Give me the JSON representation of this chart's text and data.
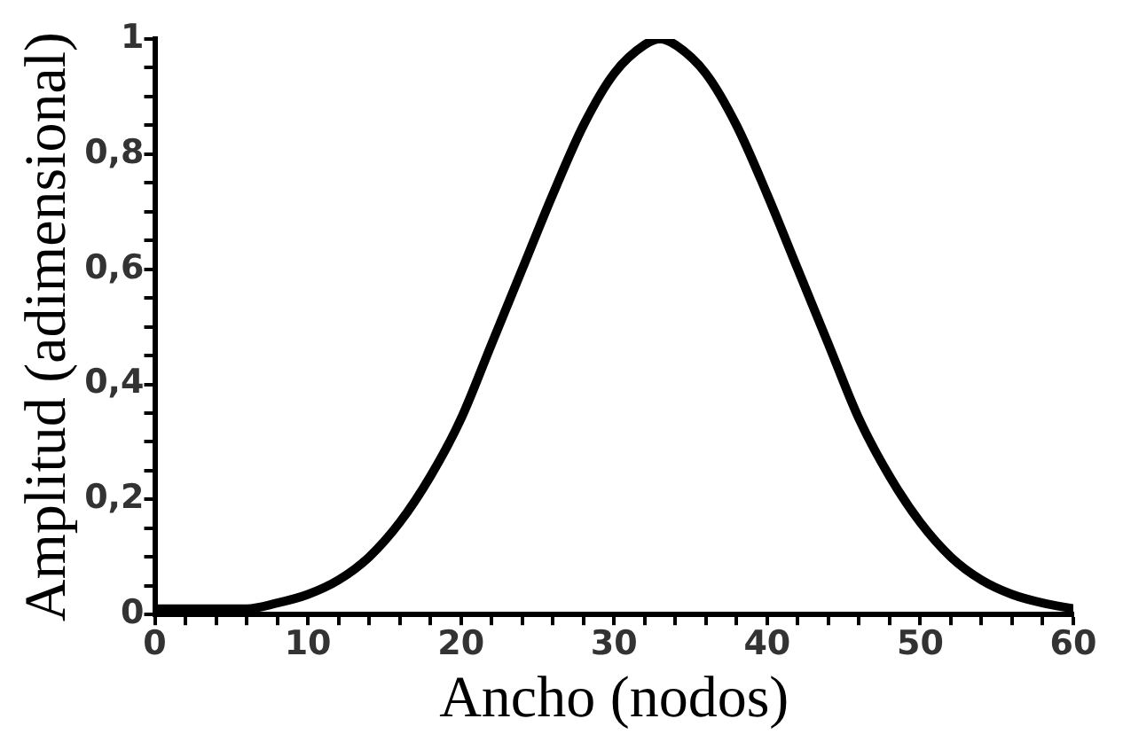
{
  "chart_data": {
    "type": "line",
    "xlabel": "Ancho (nodos)",
    "ylabel": "Amplitud (adimensional)",
    "x": [
      0,
      2,
      4,
      6,
      8,
      10,
      12,
      14,
      16,
      18,
      20,
      22,
      24,
      26,
      28,
      30,
      32,
      33,
      34,
      36,
      38,
      40,
      42,
      44,
      46,
      48,
      50,
      52,
      54,
      56,
      58,
      60
    ],
    "series": [
      {
        "color": "#000000",
        "values": [
          0.01,
          0.01,
          0.01,
          0.01,
          0.02,
          0.035,
          0.06,
          0.1,
          0.16,
          0.24,
          0.34,
          0.47,
          0.6,
          0.73,
          0.85,
          0.94,
          0.99,
          1,
          0.99,
          0.94,
          0.85,
          0.73,
          0.6,
          0.47,
          0.34,
          0.24,
          0.16,
          0.1,
          0.06,
          0.035,
          0.02,
          0.01
        ]
      }
    ],
    "xlim": [
      0,
      60
    ],
    "ylim": [
      0,
      1
    ],
    "xticks": [
      0,
      {
        "value": 2,
        "label": null
      },
      {
        "value": 4,
        "label": null
      },
      {
        "value": 6,
        "label": null
      },
      {
        "value": 8,
        "label": null
      },
      10,
      {
        "value": 12,
        "label": null
      },
      {
        "value": 14,
        "label": null
      },
      {
        "value": 16,
        "label": null
      },
      {
        "value": 18,
        "label": null
      },
      20,
      {
        "value": 22,
        "label": null
      },
      {
        "value": 24,
        "label": null
      },
      {
        "value": 26,
        "label": null
      },
      {
        "value": 28,
        "label": null
      },
      30,
      {
        "value": 32,
        "label": null
      },
      {
        "value": 34,
        "label": null
      },
      {
        "value": 36,
        "label": null
      },
      {
        "value": 38,
        "label": null
      },
      40,
      {
        "value": 42,
        "label": null
      },
      {
        "value": 44,
        "label": null
      },
      {
        "value": 46,
        "label": null
      },
      {
        "value": 48,
        "label": null
      },
      50,
      {
        "value": 52,
        "label": null
      },
      {
        "value": 54,
        "label": null
      },
      {
        "value": 56,
        "label": null
      },
      {
        "value": 58,
        "label": null
      },
      60
    ],
    "yticks": [
      0,
      {
        "value": 0.05,
        "label": null
      },
      {
        "value": 0.1,
        "label": null
      },
      {
        "value": 0.15,
        "label": null
      },
      {
        "value": 0.2,
        "label": "0,2"
      },
      {
        "value": 0.25,
        "label": null
      },
      {
        "value": 0.3,
        "label": null
      },
      {
        "value": 0.35,
        "label": null
      },
      {
        "value": 0.4,
        "label": "0,4"
      },
      {
        "value": 0.45,
        "label": null
      },
      {
        "value": 0.5,
        "label": null
      },
      {
        "value": 0.55,
        "label": null
      },
      {
        "value": 0.6,
        "label": "0,6"
      },
      {
        "value": 0.65,
        "label": null
      },
      {
        "value": 0.7,
        "label": null
      },
      {
        "value": 0.75,
        "label": null
      },
      {
        "value": 0.8,
        "label": "0,8"
      },
      {
        "value": 0.85,
        "label": null
      },
      {
        "value": 0.9,
        "label": null
      },
      {
        "value": 0.95,
        "label": null
      },
      1
    ],
    "grid": false,
    "legend": false,
    "marker": "none",
    "line_style": "solid"
  }
}
